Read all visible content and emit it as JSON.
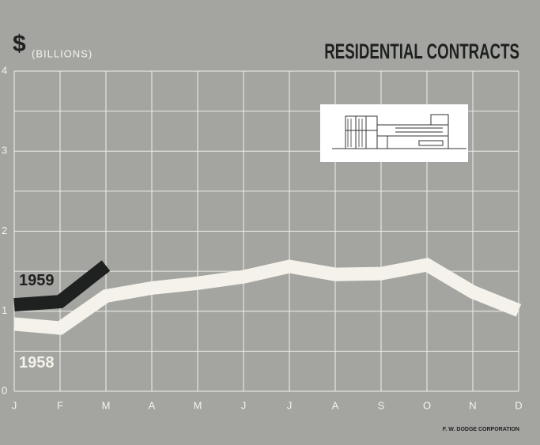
{
  "chart_data": {
    "type": "line",
    "title": "RESIDENTIAL CONTRACTS",
    "y_label_symbol": "$",
    "y_label": "(BILLIONS)",
    "source": "F. W. DODGE CORPORATION",
    "categories": [
      "J",
      "F",
      "M",
      "A",
      "M",
      "J",
      "J",
      "A",
      "S",
      "O",
      "N",
      "D"
    ],
    "series": [
      {
        "name": "1959",
        "color": "#1e211f",
        "values": [
          1.08,
          1.12,
          1.57,
          null,
          null,
          null,
          null,
          null,
          null,
          null,
          null,
          null
        ]
      },
      {
        "name": "1958",
        "color": "#f4f2ea",
        "values": [
          0.84,
          0.79,
          1.19,
          1.29,
          1.35,
          1.43,
          1.56,
          1.46,
          1.47,
          1.58,
          1.24,
          1.01
        ]
      }
    ],
    "ylim": [
      0,
      4
    ],
    "yticks": [
      0,
      1,
      2,
      3,
      4
    ],
    "grid": true
  }
}
